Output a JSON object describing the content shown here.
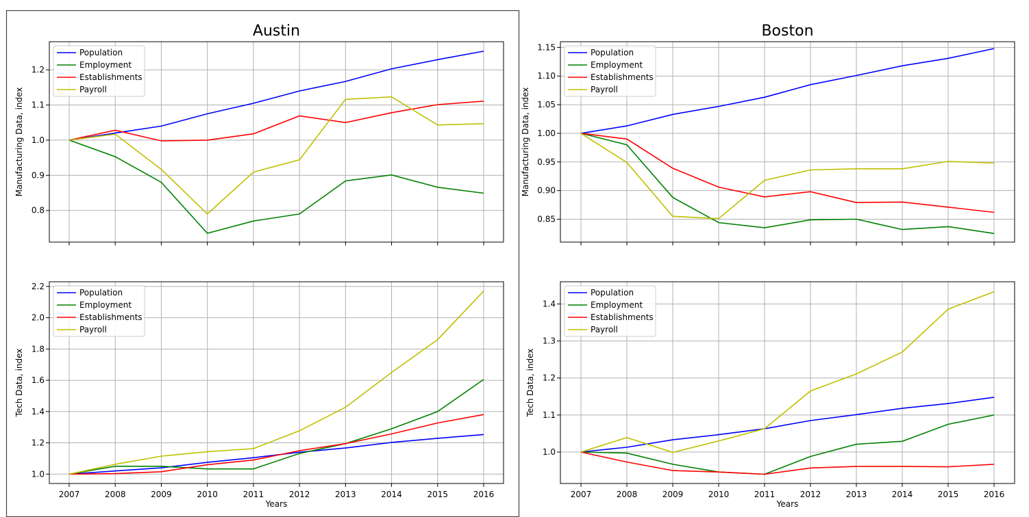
{
  "chart_data": [
    {
      "type": "line",
      "title": "Austin",
      "xlabel": "",
      "ylabel": "Manufacturing Data, index",
      "x": [
        2007,
        2008,
        2009,
        2010,
        2011,
        2012,
        2013,
        2014,
        2015,
        2016
      ],
      "xticks": [],
      "yticks": [
        "0.8",
        "0.9",
        "1.0",
        "1.1",
        "1.2"
      ],
      "ylim": [
        0.71,
        1.28
      ],
      "grid": true,
      "legend": "upper-left",
      "series": [
        {
          "name": "Population",
          "color": "#0000ff",
          "values": [
            1.0,
            1.02,
            1.04,
            1.075,
            1.105,
            1.14,
            1.167,
            1.203,
            1.229,
            1.253
          ]
        },
        {
          "name": "Employment",
          "color": "#008000",
          "values": [
            1.0,
            0.953,
            0.88,
            0.735,
            0.77,
            0.79,
            0.884,
            0.901,
            0.866,
            0.849
          ]
        },
        {
          "name": "Establishments",
          "color": "#ff0000",
          "values": [
            1.0,
            1.028,
            0.998,
            1.0,
            1.018,
            1.069,
            1.05,
            1.078,
            1.101,
            1.111
          ]
        },
        {
          "name": "Payroll",
          "color": "#bfbf00",
          "values": [
            1.0,
            1.017,
            0.917,
            0.79,
            0.909,
            0.944,
            1.116,
            1.123,
            1.043,
            1.047
          ]
        }
      ]
    },
    {
      "type": "line",
      "title": "Boston",
      "xlabel": "",
      "ylabel": "Manufacturing Data, index",
      "x": [
        2007,
        2008,
        2009,
        2010,
        2011,
        2012,
        2013,
        2014,
        2015,
        2016
      ],
      "xticks": [],
      "yticks": [
        "0.85",
        "0.90",
        "0.95",
        "1.00",
        "1.05",
        "1.10",
        "1.15"
      ],
      "ylim": [
        0.81,
        1.16
      ],
      "grid": true,
      "legend": "upper-left",
      "series": [
        {
          "name": "Population",
          "color": "#0000ff",
          "values": [
            1.0,
            1.013,
            1.033,
            1.047,
            1.063,
            1.085,
            1.101,
            1.118,
            1.131,
            1.148
          ]
        },
        {
          "name": "Employment",
          "color": "#008000",
          "values": [
            1.0,
            0.98,
            0.888,
            0.844,
            0.835,
            0.849,
            0.85,
            0.832,
            0.837,
            0.825
          ]
        },
        {
          "name": "Establishments",
          "color": "#ff0000",
          "values": [
            1.0,
            0.99,
            0.939,
            0.906,
            0.889,
            0.898,
            0.879,
            0.88,
            0.871,
            0.862
          ]
        },
        {
          "name": "Payroll",
          "color": "#bfbf00",
          "values": [
            1.0,
            0.949,
            0.855,
            0.851,
            0.918,
            0.936,
            0.938,
            0.938,
            0.951,
            0.948
          ]
        }
      ]
    },
    {
      "type": "line",
      "title": "",
      "xlabel": "Years",
      "ylabel": "Tech Data, index",
      "x": [
        2007,
        2008,
        2009,
        2010,
        2011,
        2012,
        2013,
        2014,
        2015,
        2016
      ],
      "xticks": [
        "2007",
        "2008",
        "2009",
        "2010",
        "2011",
        "2012",
        "2013",
        "2014",
        "2015",
        "2016"
      ],
      "yticks": [
        "1.0",
        "1.2",
        "1.4",
        "1.6",
        "1.8",
        "2.0",
        "2.2"
      ],
      "ylim": [
        0.94,
        2.23
      ],
      "grid": true,
      "legend": "upper-left",
      "series": [
        {
          "name": "Population",
          "color": "#0000ff",
          "values": [
            1.0,
            1.02,
            1.04,
            1.075,
            1.105,
            1.14,
            1.167,
            1.203,
            1.229,
            1.253
          ]
        },
        {
          "name": "Employment",
          "color": "#008000",
          "values": [
            1.0,
            1.05,
            1.05,
            1.033,
            1.033,
            1.132,
            1.195,
            1.29,
            1.4,
            1.605
          ]
        },
        {
          "name": "Establishments",
          "color": "#ff0000",
          "values": [
            1.0,
            1.003,
            1.015,
            1.06,
            1.09,
            1.15,
            1.195,
            1.257,
            1.327,
            1.381
          ]
        },
        {
          "name": "Payroll",
          "color": "#bfbf00",
          "values": [
            1.0,
            1.063,
            1.115,
            1.143,
            1.163,
            1.277,
            1.427,
            1.65,
            1.86,
            2.17
          ]
        }
      ]
    },
    {
      "type": "line",
      "title": "",
      "xlabel": "Years",
      "ylabel": "Tech Data, index",
      "x": [
        2007,
        2008,
        2009,
        2010,
        2011,
        2012,
        2013,
        2014,
        2015,
        2016
      ],
      "xticks": [
        "2007",
        "2008",
        "2009",
        "2010",
        "2011",
        "2012",
        "2013",
        "2014",
        "2015",
        "2016"
      ],
      "yticks": [
        "1.0",
        "1.1",
        "1.2",
        "1.3",
        "1.4"
      ],
      "ylim": [
        0.915,
        1.46
      ],
      "grid": true,
      "legend": "upper-left",
      "series": [
        {
          "name": "Population",
          "color": "#0000ff",
          "values": [
            1.0,
            1.013,
            1.033,
            1.047,
            1.063,
            1.085,
            1.101,
            1.118,
            1.131,
            1.148
          ]
        },
        {
          "name": "Employment",
          "color": "#008000",
          "values": [
            1.0,
            0.997,
            0.967,
            0.946,
            0.94,
            0.988,
            1.021,
            1.029,
            1.075,
            1.1
          ]
        },
        {
          "name": "Establishments",
          "color": "#ff0000",
          "values": [
            1.0,
            0.973,
            0.95,
            0.946,
            0.94,
            0.957,
            0.961,
            0.961,
            0.96,
            0.967
          ]
        },
        {
          "name": "Payroll",
          "color": "#bfbf00",
          "values": [
            1.0,
            1.039,
            0.999,
            1.03,
            1.063,
            1.165,
            1.211,
            1.27,
            1.386,
            1.433
          ]
        }
      ]
    }
  ]
}
